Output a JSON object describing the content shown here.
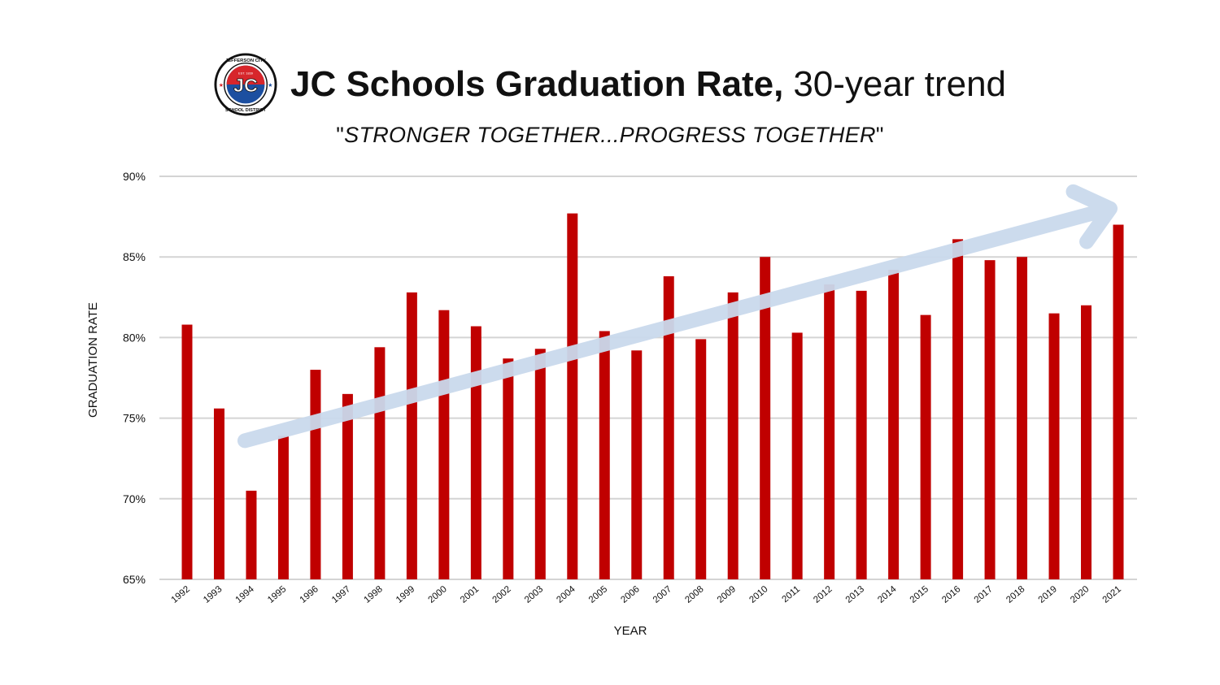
{
  "header": {
    "logo": {
      "icon": "jc-school-district-seal",
      "initials": "JC",
      "ring_top": "JEFFERSON CITY",
      "ring_bottom": "SCHOOL DISTRICT",
      "est": "EST. 1839"
    },
    "title_bold": "JC Schools Graduation Rate,",
    "title_light": "30-year trend"
  },
  "tagline": {
    "quote_open": "\"",
    "text": "STRONGER TOGETHER...PROGRESS TOGETHER",
    "quote_close": "\""
  },
  "colors": {
    "bar": "#c00000",
    "trend_arrow": "#c9d9ec",
    "gridline": "#d4d4d4",
    "text": "#111111",
    "logo_red": "#d7262b",
    "logo_blue": "#1c4fa0"
  },
  "chart_data": {
    "type": "bar",
    "title": "JC Schools Graduation Rate, 30-year trend",
    "xlabel": "YEAR",
    "ylabel": "GRADUATION RATE",
    "ylim": [
      65,
      90
    ],
    "y_tick_values": [
      65,
      70,
      75,
      80,
      85,
      90
    ],
    "y_tick_labels": [
      "65%",
      "70%",
      "75%",
      "80%",
      "85%",
      "90%"
    ],
    "grid": true,
    "legend": "none",
    "trend_arrow": {
      "direction": "upward",
      "from": {
        "year": "1994",
        "value": 73.6
      },
      "to": {
        "year": "2021",
        "value": 88.0
      }
    },
    "categories": [
      "1992",
      "1993",
      "1994",
      "1995",
      "1996",
      "1997",
      "1998",
      "1999",
      "2000",
      "2001",
      "2002",
      "2003",
      "2004",
      "2005",
      "2006",
      "2007",
      "2008",
      "2009",
      "2010",
      "2011",
      "2012",
      "2013",
      "2014",
      "2015",
      "2016",
      "2017",
      "2018",
      "2019",
      "2020",
      "2021"
    ],
    "values": [
      80.8,
      75.6,
      70.5,
      73.9,
      78.0,
      76.5,
      79.4,
      82.8,
      81.7,
      80.7,
      78.7,
      79.3,
      87.7,
      80.4,
      79.2,
      83.8,
      79.9,
      82.8,
      85.0,
      80.3,
      83.3,
      82.9,
      84.2,
      81.4,
      86.1,
      84.8,
      85.0,
      81.5,
      82.0,
      87.0
    ]
  }
}
